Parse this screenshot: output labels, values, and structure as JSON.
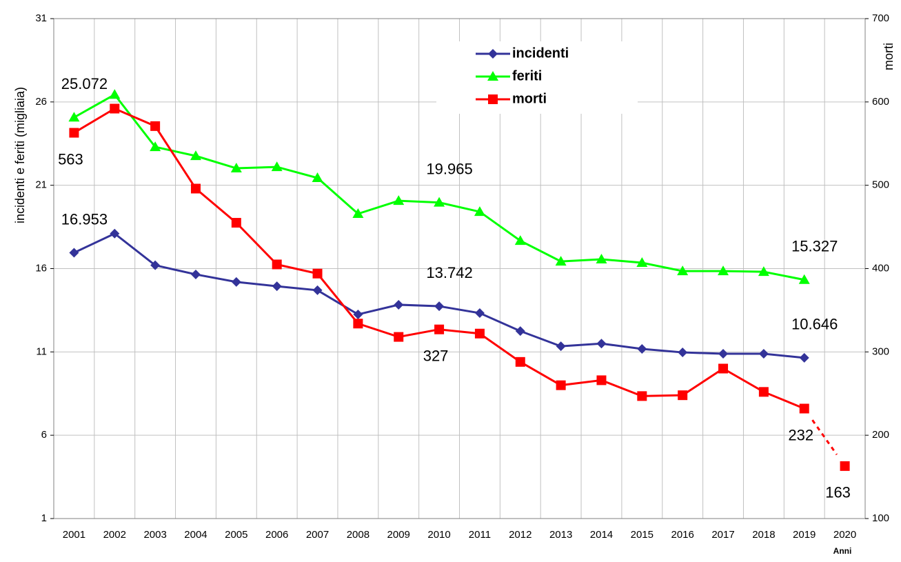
{
  "chart_data": {
    "type": "line",
    "y_label": "incidenti e feriti (migliaia)",
    "y2_label": "morti",
    "x_label": "Anni",
    "categories": [
      "2001",
      "2002",
      "2003",
      "2004",
      "2005",
      "2006",
      "2007",
      "2008",
      "2009",
      "2010",
      "2011",
      "2012",
      "2013",
      "2014",
      "2015",
      "2016",
      "2017",
      "2018",
      "2019",
      "2020"
    ],
    "ylim": [
      1,
      31
    ],
    "yticks": [
      1,
      6,
      11,
      16,
      21,
      26,
      31
    ],
    "y2lim": [
      100,
      700
    ],
    "y2ticks": [
      100,
      200,
      300,
      400,
      500,
      600,
      700
    ],
    "grid": true,
    "series": [
      {
        "name": "incidenti",
        "color": "#333399",
        "marker": "diamond",
        "values": [
          16.953,
          18.1,
          16.2,
          15.65,
          15.2,
          14.94,
          14.7,
          13.25,
          13.83,
          13.742,
          13.33,
          12.25,
          11.34,
          11.5,
          11.18,
          10.97,
          10.89,
          10.89,
          10.646,
          null
        ],
        "value_labels": [
          "16.953",
          null,
          null,
          null,
          null,
          null,
          null,
          null,
          null,
          "13.742",
          null,
          null,
          null,
          null,
          null,
          null,
          null,
          null,
          "10.646",
          null
        ]
      },
      {
        "name": "feriti",
        "color": "#00ff00",
        "marker": "triangle",
        "values": [
          25.072,
          26.44,
          23.3,
          22.76,
          22.02,
          22.1,
          21.44,
          19.29,
          20.07,
          19.965,
          19.41,
          17.67,
          16.43,
          16.56,
          16.35,
          15.85,
          15.85,
          15.81,
          15.327,
          null
        ],
        "value_labels": [
          "25.072",
          null,
          null,
          null,
          null,
          null,
          null,
          null,
          null,
          "19.965",
          null,
          null,
          null,
          null,
          null,
          null,
          null,
          null,
          "15.327",
          null
        ]
      },
      {
        "name": "morti",
        "color": "#ff0000",
        "marker": "square",
        "axis": "y2",
        "last_segment_dashed": true,
        "values": [
          563,
          592,
          571,
          496,
          455,
          405,
          394,
          334,
          318,
          327,
          322,
          288,
          260,
          266,
          247,
          248,
          280,
          252,
          232,
          163
        ],
        "value_labels": [
          "563",
          null,
          null,
          null,
          null,
          null,
          null,
          null,
          null,
          "327",
          null,
          null,
          null,
          null,
          null,
          null,
          null,
          null,
          "232",
          "163"
        ]
      }
    ]
  }
}
